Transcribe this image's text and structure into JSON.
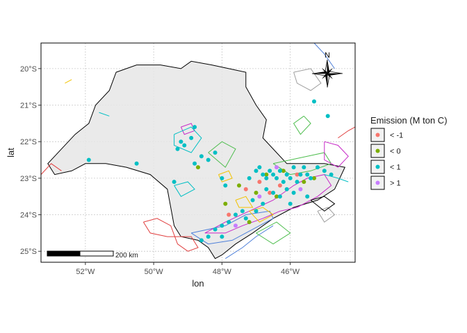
{
  "chart_data": {
    "type": "scatter",
    "xlabel": "lon",
    "ylabel": "lat",
    "xlim": [
      -53.3,
      -44.1
    ],
    "ylim": [
      -25.3,
      -19.3
    ],
    "x_ticks": [
      {
        "value": -52,
        "label": "52°W"
      },
      {
        "value": -50,
        "label": "50°W"
      },
      {
        "value": -48,
        "label": "48°W"
      },
      {
        "value": -46,
        "label": "46°W"
      }
    ],
    "y_ticks": [
      {
        "value": -20,
        "label": "20°S"
      },
      {
        "value": -21,
        "label": "21°S"
      },
      {
        "value": -22,
        "label": "22°S"
      },
      {
        "value": -23,
        "label": "23°S"
      },
      {
        "value": -24,
        "label": "24°S"
      },
      {
        "value": -25,
        "label": "25°S"
      }
    ],
    "grid": true,
    "legend": {
      "title": "Emission (M ton C)",
      "position": "right",
      "entries": [
        {
          "label": "< -1",
          "color": "#F8766D"
        },
        {
          "label": "< 0",
          "color": "#7CAE00"
        },
        {
          "label": "< 1",
          "color": "#00BFC4"
        },
        {
          "label": "> 1",
          "color": "#C77CFF"
        }
      ]
    },
    "scale_bar": {
      "label": "200 km"
    },
    "north_arrow": {
      "label": "N"
    },
    "state_outline": [
      [
        -51.1,
        -20.1
      ],
      [
        -50.5,
        -19.9
      ],
      [
        -49.8,
        -19.9
      ],
      [
        -49.2,
        -20.0
      ],
      [
        -48.9,
        -19.8
      ],
      [
        -48.3,
        -19.9
      ],
      [
        -47.8,
        -20.0
      ],
      [
        -47.3,
        -20.1
      ],
      [
        -47.3,
        -20.5
      ],
      [
        -47.0,
        -21.0
      ],
      [
        -46.7,
        -21.4
      ],
      [
        -46.8,
        -21.9
      ],
      [
        -46.4,
        -22.3
      ],
      [
        -46.1,
        -22.6
      ],
      [
        -45.6,
        -22.6
      ],
      [
        -45.0,
        -22.6
      ],
      [
        -44.4,
        -22.7
      ],
      [
        -44.7,
        -23.3
      ],
      [
        -45.2,
        -23.6
      ],
      [
        -45.9,
        -23.8
      ],
      [
        -46.5,
        -24.1
      ],
      [
        -47.1,
        -24.5
      ],
      [
        -47.6,
        -24.8
      ],
      [
        -48.0,
        -25.1
      ],
      [
        -48.2,
        -25.2
      ],
      [
        -48.4,
        -24.9
      ],
      [
        -48.7,
        -24.7
      ],
      [
        -49.2,
        -24.6
      ],
      [
        -49.4,
        -24.3
      ],
      [
        -49.5,
        -23.8
      ],
      [
        -49.6,
        -23.3
      ],
      [
        -50.1,
        -22.9
      ],
      [
        -50.8,
        -22.7
      ],
      [
        -51.4,
        -22.6
      ],
      [
        -52.0,
        -22.6
      ],
      [
        -52.4,
        -22.8
      ],
      [
        -52.9,
        -22.9
      ],
      [
        -53.1,
        -22.6
      ],
      [
        -52.7,
        -22.2
      ],
      [
        -52.3,
        -21.8
      ],
      [
        -51.9,
        -21.5
      ],
      [
        -51.7,
        -21.0
      ],
      [
        -51.3,
        -20.6
      ],
      [
        -51.1,
        -20.1
      ]
    ],
    "boundaries": [
      {
        "color": "#e03e3e",
        "points": [
          [
            -50.3,
            -24.2
          ],
          [
            -49.9,
            -24.1
          ],
          [
            -49.5,
            -24.3
          ],
          [
            -49.3,
            -24.8
          ],
          [
            -49.0,
            -25.0
          ],
          [
            -48.7,
            -24.9
          ],
          [
            -48.9,
            -24.6
          ],
          [
            -49.6,
            -24.6
          ],
          [
            -50.1,
            -24.5
          ],
          [
            -50.3,
            -24.2
          ]
        ]
      },
      {
        "color": "#e03e3e",
        "points": [
          [
            -53.3,
            -22.9
          ],
          [
            -53.0,
            -22.6
          ],
          [
            -52.7,
            -22.8
          ]
        ]
      },
      {
        "color": "#e03e3e",
        "points": [
          [
            -44.6,
            -21.9
          ],
          [
            -44.3,
            -21.7
          ],
          [
            -44.1,
            -21.6
          ]
        ]
      },
      {
        "color": "#4d7fd9",
        "points": [
          [
            -48.9,
            -24.5
          ],
          [
            -48.4,
            -24.4
          ],
          [
            -47.9,
            -24.3
          ],
          [
            -47.3,
            -24.0
          ],
          [
            -46.6,
            -23.9
          ],
          [
            -46.5,
            -24.1
          ],
          [
            -47.1,
            -24.4
          ],
          [
            -47.7,
            -24.7
          ],
          [
            -48.4,
            -24.8
          ],
          [
            -48.9,
            -24.5
          ]
        ]
      },
      {
        "color": "#4d7fd9",
        "points": [
          [
            -47.9,
            -25.2
          ],
          [
            -47.4,
            -24.9
          ],
          [
            -47.0,
            -24.6
          ],
          [
            -46.5,
            -24.3
          ]
        ]
      },
      {
        "color": "#4d7fd9",
        "points": [
          [
            -45.3,
            -19.3
          ],
          [
            -45.0,
            -19.6
          ],
          [
            -44.7,
            -20.0
          ]
        ]
      },
      {
        "color": "#4dbd4d",
        "points": [
          [
            -47.0,
            -24.5
          ],
          [
            -46.4,
            -24.2
          ],
          [
            -46.0,
            -24.5
          ],
          [
            -46.5,
            -24.8
          ],
          [
            -47.0,
            -24.5
          ]
        ]
      },
      {
        "color": "#4dbd4d",
        "points": [
          [
            -46.5,
            -22.6
          ],
          [
            -46.0,
            -22.5
          ],
          [
            -45.5,
            -22.4
          ],
          [
            -45.0,
            -22.3
          ],
          [
            -44.8,
            -22.6
          ],
          [
            -45.4,
            -22.8
          ],
          [
            -46.0,
            -22.9
          ],
          [
            -46.5,
            -22.6
          ]
        ]
      },
      {
        "color": "#4dbd4d",
        "points": [
          [
            -45.6,
            -21.3
          ],
          [
            -45.4,
            -21.5
          ],
          [
            -45.7,
            -21.8
          ],
          [
            -45.9,
            -21.5
          ],
          [
            -45.6,
            -21.3
          ]
        ]
      },
      {
        "color": "#4dbd4d",
        "points": [
          [
            -48.4,
            -22.3
          ],
          [
            -48.0,
            -22.0
          ],
          [
            -47.6,
            -22.2
          ],
          [
            -47.9,
            -22.7
          ],
          [
            -48.4,
            -22.3
          ]
        ]
      },
      {
        "color": "#c728c7",
        "points": [
          [
            -48.5,
            -24.5
          ],
          [
            -47.9,
            -24.5
          ],
          [
            -47.4,
            -24.3
          ],
          [
            -46.8,
            -24.1
          ],
          [
            -46.3,
            -23.9
          ],
          [
            -45.8,
            -23.8
          ],
          [
            -45.2,
            -23.5
          ],
          [
            -44.8,
            -23.2
          ],
          [
            -45.0,
            -22.9
          ],
          [
            -45.5,
            -23.0
          ],
          [
            -45.9,
            -23.2
          ],
          [
            -46.5,
            -23.6
          ],
          [
            -47.2,
            -23.9
          ],
          [
            -47.9,
            -24.2
          ],
          [
            -48.5,
            -24.5
          ]
        ]
      },
      {
        "color": "#c728c7",
        "points": [
          [
            -45.0,
            -22.0
          ],
          [
            -44.6,
            -22.1
          ],
          [
            -44.3,
            -22.4
          ],
          [
            -44.6,
            -22.7
          ],
          [
            -45.0,
            -22.5
          ],
          [
            -45.0,
            -22.0
          ]
        ]
      },
      {
        "color": "#c728c7",
        "points": [
          [
            -49.2,
            -21.6
          ],
          [
            -48.9,
            -21.5
          ],
          [
            -48.8,
            -21.7
          ],
          [
            -49.1,
            -21.8
          ],
          [
            -49.2,
            -21.6
          ]
        ]
      },
      {
        "color": "#00bfc4",
        "points": [
          [
            -49.4,
            -21.8
          ],
          [
            -48.9,
            -21.6
          ],
          [
            -48.6,
            -21.9
          ],
          [
            -48.9,
            -22.3
          ],
          [
            -49.4,
            -22.1
          ],
          [
            -49.4,
            -21.8
          ]
        ]
      },
      {
        "color": "#00bfc4",
        "points": [
          [
            -49.4,
            -23.2
          ],
          [
            -49.0,
            -23.1
          ],
          [
            -48.8,
            -23.3
          ],
          [
            -49.2,
            -23.5
          ],
          [
            -49.4,
            -23.2
          ]
        ]
      },
      {
        "color": "#00bfc4",
        "points": [
          [
            -51.6,
            -21.2
          ],
          [
            -51.3,
            -21.3
          ]
        ]
      },
      {
        "color": "#00bfc4",
        "points": [
          [
            -45.0,
            -22.9
          ],
          [
            -44.6,
            -23.0
          ],
          [
            -44.3,
            -23.1
          ]
        ]
      },
      {
        "color": "#f2c200",
        "points": [
          [
            -47.2,
            -23.9
          ],
          [
            -46.8,
            -23.8
          ],
          [
            -46.5,
            -24.0
          ],
          [
            -46.9,
            -24.2
          ],
          [
            -47.2,
            -23.9
          ]
        ]
      },
      {
        "color": "#f2c200",
        "points": [
          [
            -47.6,
            -23.6
          ],
          [
            -47.3,
            -23.5
          ],
          [
            -47.1,
            -23.8
          ],
          [
            -47.5,
            -23.8
          ],
          [
            -47.6,
            -23.6
          ]
        ]
      },
      {
        "color": "#f2c200",
        "points": [
          [
            -48.1,
            -22.9
          ],
          [
            -47.8,
            -22.8
          ],
          [
            -47.7,
            -23.0
          ],
          [
            -48.0,
            -23.1
          ],
          [
            -48.1,
            -22.9
          ]
        ]
      },
      {
        "color": "#f2c200",
        "points": [
          [
            -52.6,
            -20.4
          ],
          [
            -52.4,
            -20.3
          ]
        ]
      },
      {
        "color": "#9e9e9e",
        "points": [
          [
            -45.9,
            -20.1
          ],
          [
            -45.4,
            -20.0
          ],
          [
            -45.1,
            -20.4
          ],
          [
            -45.4,
            -20.6
          ],
          [
            -45.8,
            -20.4
          ],
          [
            -45.9,
            -20.1
          ]
        ]
      },
      {
        "color": "#9e9e9e",
        "points": [
          [
            -45.2,
            -23.9
          ],
          [
            -44.9,
            -23.8
          ],
          [
            -44.7,
            -24.0
          ],
          [
            -45.0,
            -24.2
          ],
          [
            -45.2,
            -23.9
          ]
        ]
      },
      {
        "color": "#000000",
        "points": [
          [
            -45.4,
            -23.6
          ],
          [
            -45.0,
            -23.5
          ],
          [
            -44.7,
            -23.7
          ],
          [
            -45.0,
            -23.9
          ],
          [
            -45.4,
            -23.6
          ]
        ]
      }
    ],
    "series": [
      {
        "name": "< -1",
        "color": "#F8766D",
        "points": [
          [
            -47.3,
            -23.3
          ],
          [
            -46.9,
            -23.1
          ],
          [
            -46.6,
            -23.4
          ],
          [
            -47.8,
            -24.0
          ],
          [
            -45.8,
            -22.9
          ],
          [
            -46.3,
            -23.2
          ]
        ]
      },
      {
        "name": "< 0",
        "color": "#7CAE00",
        "points": [
          [
            -47.5,
            -23.2
          ],
          [
            -47.0,
            -23.4
          ],
          [
            -46.7,
            -22.9
          ],
          [
            -46.2,
            -22.8
          ],
          [
            -45.6,
            -23.1
          ],
          [
            -48.7,
            -22.7
          ],
          [
            -47.9,
            -23.7
          ],
          [
            -46.4,
            -23.5
          ],
          [
            -45.3,
            -23.0
          ],
          [
            -47.2,
            -24.2
          ]
        ]
      },
      {
        "name": "< 1",
        "color": "#00BFC4",
        "points": [
          [
            -49.2,
            -22.0
          ],
          [
            -49.1,
            -22.1
          ],
          [
            -48.9,
            -21.9
          ],
          [
            -49.3,
            -22.2
          ],
          [
            -48.8,
            -21.6
          ],
          [
            -48.8,
            -22.6
          ],
          [
            -48.4,
            -22.5
          ],
          [
            -48.2,
            -22.3
          ],
          [
            -48.6,
            -22.4
          ],
          [
            -51.9,
            -22.5
          ],
          [
            -50.5,
            -22.6
          ],
          [
            -49.4,
            -23.1
          ],
          [
            -48.0,
            -23.0
          ],
          [
            -47.9,
            -23.2
          ],
          [
            -47.0,
            -22.8
          ],
          [
            -46.9,
            -22.7
          ],
          [
            -46.8,
            -22.9
          ],
          [
            -46.7,
            -23.0
          ],
          [
            -46.6,
            -22.8
          ],
          [
            -46.5,
            -22.9
          ],
          [
            -46.4,
            -23.0
          ],
          [
            -46.3,
            -22.8
          ],
          [
            -46.2,
            -23.1
          ],
          [
            -46.1,
            -22.9
          ],
          [
            -46.0,
            -23.0
          ],
          [
            -45.9,
            -22.7
          ],
          [
            -45.8,
            -23.1
          ],
          [
            -45.7,
            -22.9
          ],
          [
            -45.6,
            -22.7
          ],
          [
            -45.5,
            -22.9
          ],
          [
            -45.4,
            -23.0
          ],
          [
            -45.2,
            -22.7
          ],
          [
            -45.0,
            -22.8
          ],
          [
            -44.8,
            -22.9
          ],
          [
            -46.7,
            -23.3
          ],
          [
            -46.5,
            -23.4
          ],
          [
            -46.3,
            -23.5
          ],
          [
            -46.1,
            -23.3
          ],
          [
            -45.9,
            -23.4
          ],
          [
            -47.2,
            -23.0
          ],
          [
            -47.1,
            -23.6
          ],
          [
            -47.4,
            -23.9
          ],
          [
            -47.6,
            -24.0
          ],
          [
            -47.8,
            -24.2
          ],
          [
            -48.0,
            -24.3
          ],
          [
            -48.2,
            -24.4
          ],
          [
            -47.3,
            -24.1
          ],
          [
            -47.0,
            -23.9
          ],
          [
            -46.8,
            -23.7
          ],
          [
            -46.0,
            -23.7
          ],
          [
            -45.5,
            -23.5
          ],
          [
            -48.4,
            -24.6
          ],
          [
            -48.6,
            -24.7
          ],
          [
            -48.0,
            -24.6
          ],
          [
            -45.3,
            -20.9
          ],
          [
            -44.9,
            -21.3
          ]
        ]
      },
      {
        "name": "> 1",
        "color": "#C77CFF",
        "points": [
          [
            -46.9,
            -23.5
          ],
          [
            -45.7,
            -23.3
          ],
          [
            -46.4,
            -22.7
          ],
          [
            -47.6,
            -24.3
          ]
        ]
      }
    ]
  }
}
